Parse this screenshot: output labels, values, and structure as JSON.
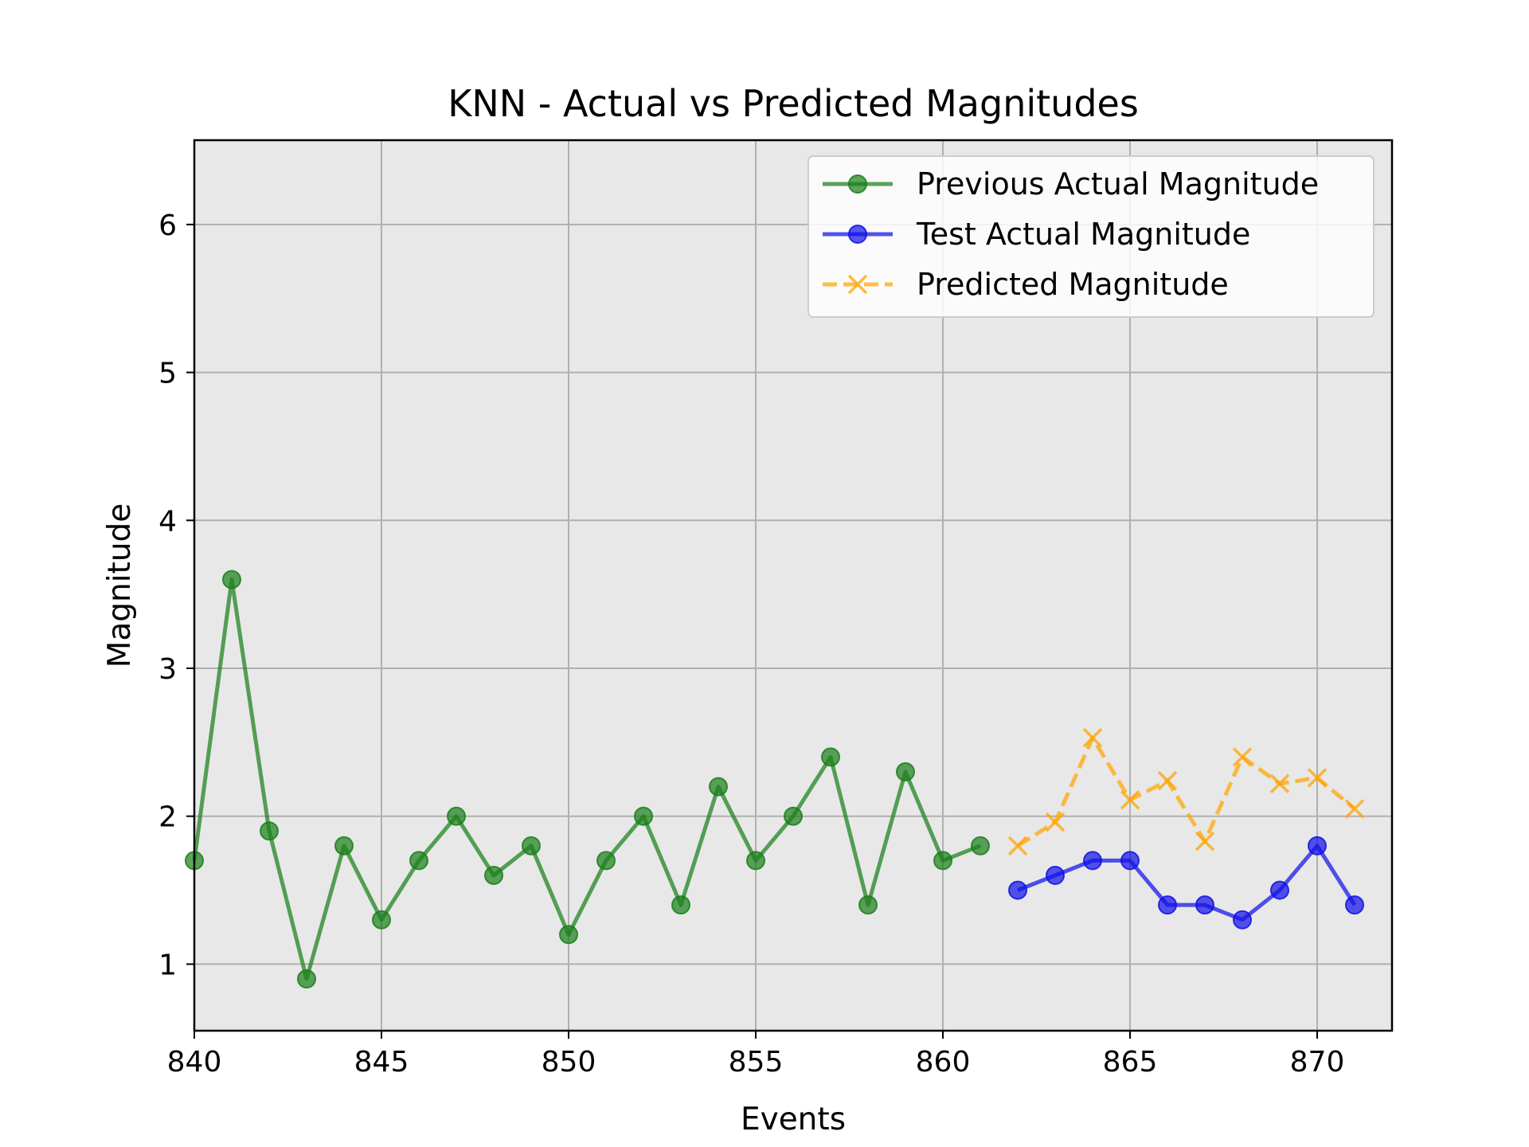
{
  "chart_data": {
    "type": "line",
    "title": "KNN - Actual vs Predicted Magnitudes",
    "xlabel": "Events",
    "ylabel": "Magnitude",
    "xlim": [
      840,
      872
    ],
    "ylim": [
      0.55,
      6.57
    ],
    "xticks": [
      840,
      845,
      850,
      855,
      860,
      865,
      870
    ],
    "yticks": [
      1,
      2,
      3,
      4,
      5,
      6
    ],
    "grid": true,
    "plot_background": "#e8e8e8",
    "legend_position": "top-right",
    "series": [
      {
        "name": "Previous Actual Magnitude",
        "color": "#1a7f1a",
        "marker": "circle",
        "linestyle": "solid",
        "x": [
          840,
          841,
          842,
          843,
          844,
          845,
          846,
          847,
          848,
          849,
          850,
          851,
          852,
          853,
          854,
          855,
          856,
          857,
          858,
          859,
          860,
          861
        ],
        "y": [
          1.7,
          3.6,
          1.9,
          0.9,
          1.8,
          1.3,
          1.7,
          2.0,
          1.6,
          1.8,
          1.2,
          1.7,
          2.0,
          1.4,
          2.2,
          1.7,
          2.0,
          2.4,
          1.4,
          2.3,
          1.7,
          1.8
        ]
      },
      {
        "name": "Test Actual Magnitude",
        "color": "#1010e8",
        "marker": "circle",
        "linestyle": "solid",
        "x": [
          862,
          863,
          864,
          865,
          866,
          867,
          868,
          869,
          870,
          871
        ],
        "y": [
          1.5,
          1.6,
          1.7,
          1.7,
          1.4,
          1.4,
          1.3,
          1.5,
          1.8,
          1.4
        ]
      },
      {
        "name": "Predicted Magnitude",
        "color": "#ffa500",
        "marker": "x",
        "linestyle": "dashed",
        "x": [
          862,
          863,
          864,
          865,
          866,
          867,
          868,
          869,
          870,
          871
        ],
        "y": [
          1.8,
          1.96,
          2.53,
          2.11,
          2.24,
          1.83,
          2.4,
          2.22,
          2.26,
          2.05
        ]
      }
    ]
  }
}
